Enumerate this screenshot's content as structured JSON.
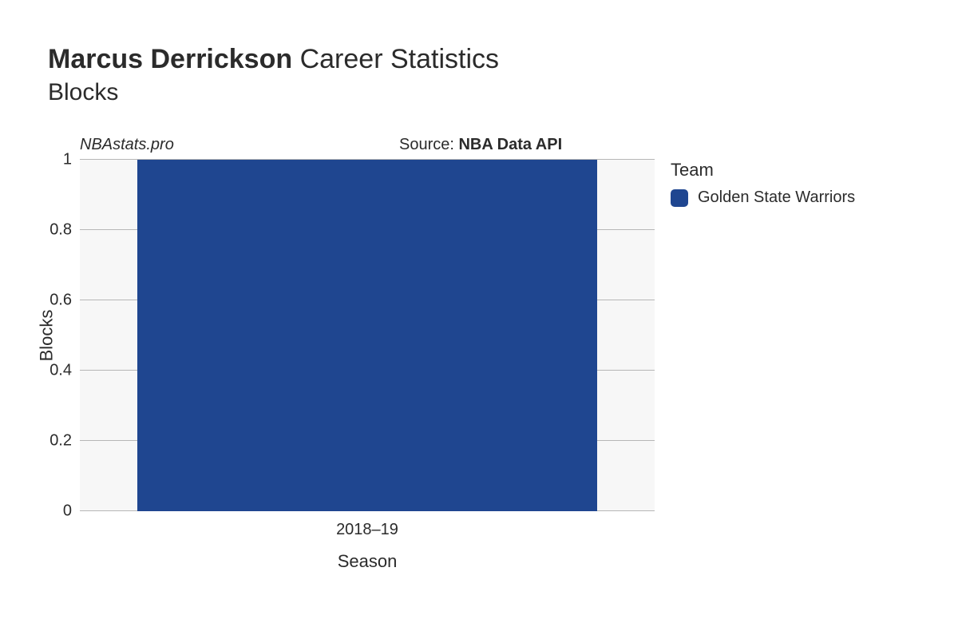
{
  "title": {
    "player_name": "Marcus Derrickson",
    "suffix": " Career Statistics",
    "subtitle": "Blocks",
    "title_fontsize": 34,
    "subtitle_fontsize": 30,
    "text_color": "#2b2b2b"
  },
  "watermark": "NBAstats.pro",
  "source": {
    "label": "Source: ",
    "value": "NBA Data API"
  },
  "legend": {
    "title": "Team",
    "items": [
      {
        "label": "Golden State Warriors",
        "color": "#1f4690"
      }
    ]
  },
  "chart": {
    "type": "bar",
    "background_color": "#f7f7f7",
    "grid_color": "#b7b7b7",
    "ylabel": "Blocks",
    "xlabel": "Season",
    "label_fontsize": 22,
    "tick_fontsize": 20,
    "ylim": [
      0,
      1
    ],
    "yticks": [
      0,
      0.2,
      0.4,
      0.6,
      0.8,
      1
    ],
    "ytick_labels": [
      "0",
      "0.2",
      "0.4",
      "0.6",
      "0.8",
      "1"
    ],
    "categories": [
      "2018–19"
    ],
    "bars": [
      {
        "category": "2018–19",
        "value": 1,
        "color": "#1f4690",
        "width_frac": 0.8,
        "center_frac": 0.5
      }
    ]
  }
}
